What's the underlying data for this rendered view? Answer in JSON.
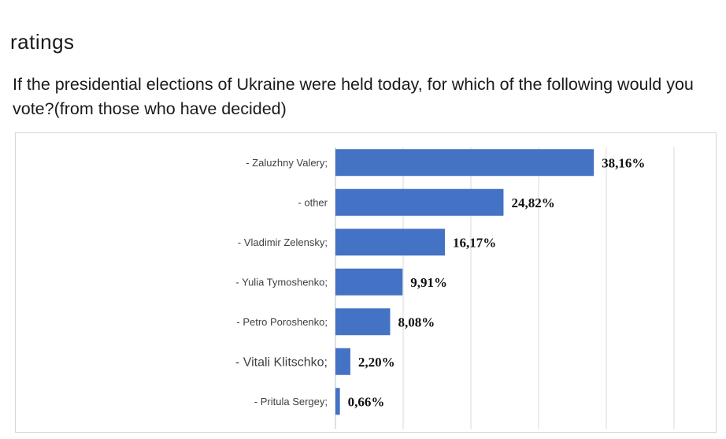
{
  "page": {
    "heading": "ratings",
    "question": "If the presidential elections of Ukraine were held today, for which of the following would you vote?(from those who have decided)"
  },
  "chart_data": {
    "type": "bar",
    "orientation": "horizontal",
    "categories": [
      "- Zaluzhny Valery;",
      "- other",
      "- Vladimir Zelensky;",
      "- Yulia Tymoshenko;",
      "- Petro Poroshenko;",
      "- Vitali Klitschko;",
      "- Pritula Sergey;"
    ],
    "values": [
      38.16,
      24.82,
      16.17,
      9.91,
      8.08,
      2.2,
      0.66
    ],
    "value_labels": [
      "38,16%",
      "24,82%",
      "16,17%",
      "9,91%",
      "8,08%",
      "2,20%",
      "0,66%"
    ],
    "xlim": [
      0,
      55
    ],
    "grid": true,
    "bar_color": "#4472c4",
    "gridline_color": "#d9d9d9"
  }
}
